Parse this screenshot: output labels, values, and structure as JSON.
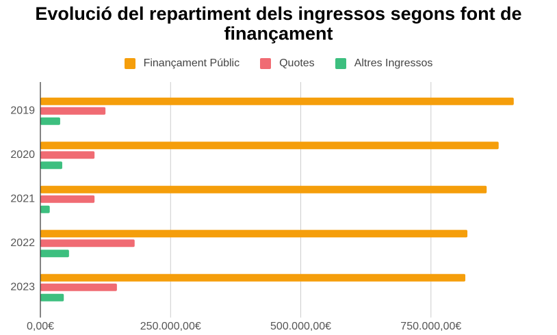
{
  "chart_data": {
    "type": "hbar",
    "title": "Evolució del repartiment dels ingressos segons font de finançament",
    "categories": [
      "2019",
      "2020",
      "2021",
      "2022",
      "2023"
    ],
    "series": [
      {
        "name": "Finançament Públic",
        "color": "#f59e0b",
        "values": [
          909000,
          880000,
          857000,
          820000,
          816000
        ]
      },
      {
        "name": "Quotes",
        "color": "#f06b73",
        "values": [
          125000,
          104000,
          104000,
          181000,
          147000
        ]
      },
      {
        "name": "Altres Ingressos",
        "color": "#3dbf7f",
        "values": [
          38000,
          42000,
          18000,
          55000,
          45000
        ]
      }
    ],
    "xlim": [
      0,
      950000
    ],
    "xticks": [
      {
        "value": 0,
        "label": "0,00€"
      },
      {
        "value": 250000,
        "label": "250.000,00€"
      },
      {
        "value": 500000,
        "label": "500.000,00€"
      },
      {
        "value": 750000,
        "label": "750.000,00€"
      }
    ],
    "grid": true
  }
}
